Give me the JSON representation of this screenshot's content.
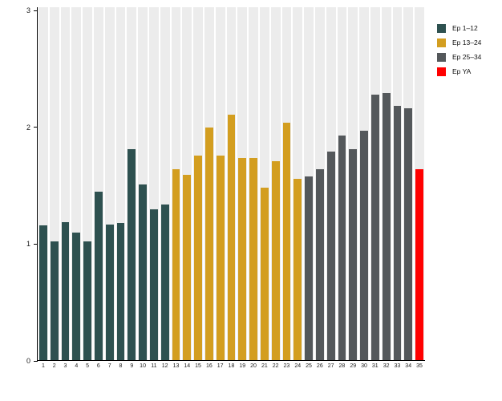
{
  "chart_data": {
    "type": "bar",
    "title": "",
    "xlabel": "",
    "ylabel": "",
    "ylim": [
      0,
      3
    ],
    "yticks": [
      0,
      1,
      2,
      3
    ],
    "grid": "off",
    "legend_position": "top-right",
    "background_stripe_color": "#ECECEC",
    "axis_color": "#000000",
    "categories": [
      "1",
      "2",
      "3",
      "4",
      "5",
      "6",
      "7",
      "8",
      "9",
      "10",
      "11",
      "12",
      "13",
      "14",
      "15",
      "16",
      "17",
      "18",
      "19",
      "20",
      "21",
      "22",
      "23",
      "24",
      "25",
      "26",
      "27",
      "28",
      "29",
      "30",
      "31",
      "32",
      "33",
      "34",
      "35"
    ],
    "values": [
      1.16,
      1.02,
      1.19,
      1.1,
      1.02,
      1.45,
      1.17,
      1.18,
      1.81,
      1.51,
      1.3,
      1.34,
      1.64,
      1.59,
      1.76,
      2.0,
      1.76,
      2.11,
      1.74,
      1.74,
      1.48,
      1.71,
      2.04,
      1.56,
      1.58,
      1.64,
      1.79,
      1.93,
      1.81,
      1.97,
      2.28,
      2.29,
      2.18,
      2.16,
      1.64
    ],
    "groups": [
      {
        "name": "Ep 1–12",
        "color": "#2E5150",
        "from": 1,
        "to": 12
      },
      {
        "name": "Ep 13–24",
        "color": "#D39E20",
        "from": 13,
        "to": 24
      },
      {
        "name": "Ep 25–34",
        "color": "#54585B",
        "from": 25,
        "to": 34
      },
      {
        "name": "Ep YA",
        "color": "#FF0000",
        "from": 35,
        "to": 35
      }
    ]
  }
}
